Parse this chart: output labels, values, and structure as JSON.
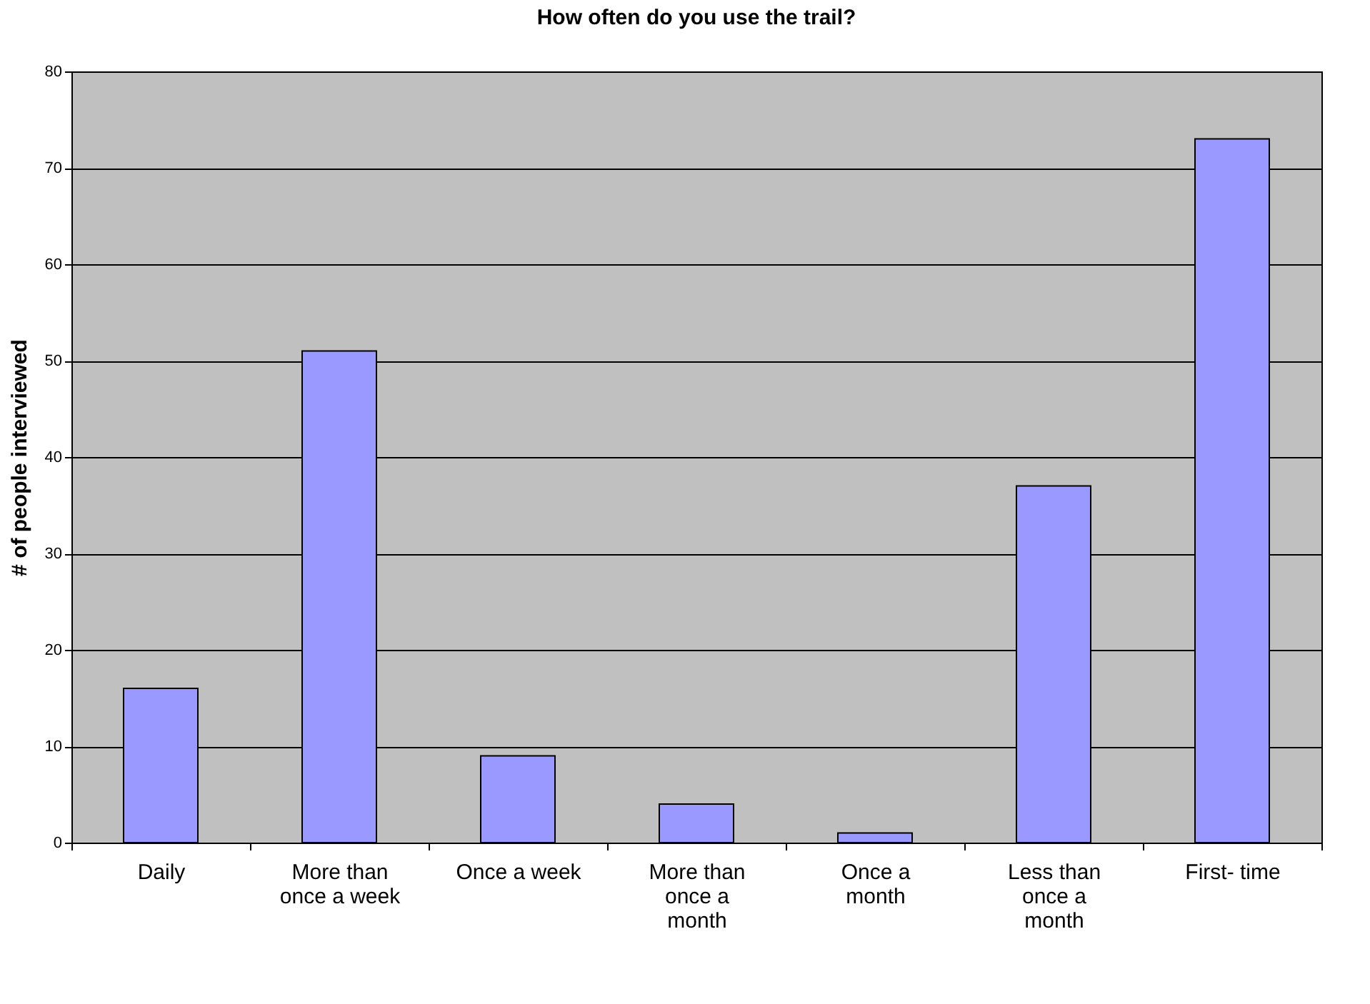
{
  "chart_data": {
    "type": "bar",
    "title": "How often do you use the trail?",
    "ylabel": "# of people interviewed",
    "categories": [
      "Daily",
      "More than once a week",
      "Once a week",
      "More than once a month",
      "Once a month",
      "Less than once a month",
      "First- time"
    ],
    "values": [
      16,
      51,
      9,
      4,
      1,
      37,
      73
    ],
    "color": "#9999ff",
    "ylim": [
      0,
      80
    ],
    "yticks": [
      0,
      10,
      20,
      30,
      40,
      50,
      60,
      70,
      80
    ],
    "grid": "y"
  }
}
